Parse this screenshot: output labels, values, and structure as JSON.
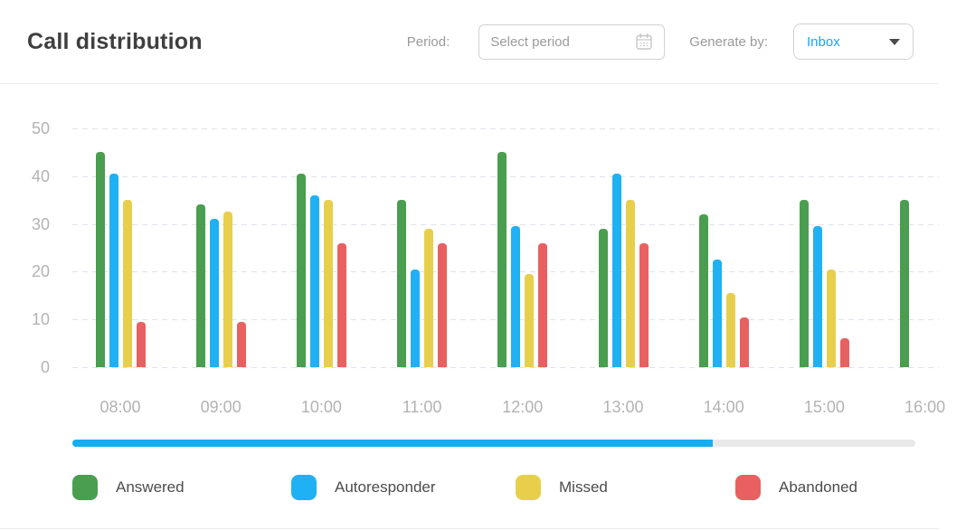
{
  "header": {
    "title": "Call distribution",
    "period": {
      "label": "Period:",
      "placeholder": "Select period"
    },
    "generate": {
      "label": "Generate by:",
      "value": "Inbox",
      "value_color": "#1BA3F2"
    }
  },
  "chart_data": {
    "type": "bar",
    "title": "Call distribution",
    "categories": [
      "08:00",
      "09:00",
      "10:00",
      "11:00",
      "12:00",
      "13:00",
      "14:00",
      "15:00",
      "16:00"
    ],
    "series": [
      {
        "name": "Answered",
        "color": "#4A9E4F",
        "values": [
          45,
          34,
          40.5,
          35,
          45,
          29,
          32,
          35,
          35
        ]
      },
      {
        "name": "Autoresponder",
        "color": "#1FB1F3",
        "values": [
          40.5,
          31,
          36,
          20.5,
          29.5,
          40.5,
          22.5,
          29.5,
          null
        ]
      },
      {
        "name": "Missed",
        "color": "#E7CF4C",
        "values": [
          35,
          32.5,
          35,
          29,
          19.5,
          35,
          15.5,
          20.5,
          null
        ]
      },
      {
        "name": "Abandoned",
        "color": "#E96060",
        "values": [
          9.5,
          9.5,
          26,
          26,
          26,
          26,
          10.5,
          6,
          null
        ]
      }
    ],
    "xlabel": "",
    "ylabel": "",
    "ylim": [
      0,
      50
    ],
    "yticks": [
      0,
      10,
      20,
      30,
      40,
      50
    ],
    "grid": "horizontal-dashed",
    "legend_position": "bottom"
  },
  "scrollbar": {
    "progress_percent": 76,
    "fill_color": "#12AEEF",
    "track_color": "#E9E9E9"
  },
  "legend": {
    "items": [
      {
        "label": "Answered",
        "color": "#4A9E4F"
      },
      {
        "label": "Autoresponder",
        "color": "#1FB1F3"
      },
      {
        "label": "Missed",
        "color": "#E7CF4C"
      },
      {
        "label": "Abandoned",
        "color": "#E96060"
      }
    ]
  }
}
